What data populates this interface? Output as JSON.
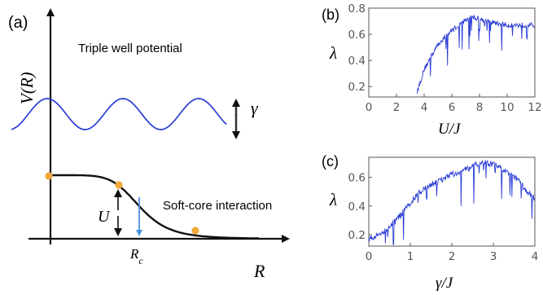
{
  "figure": {
    "panel_a": {
      "label": "(a)",
      "y_axis_label": "V(R)",
      "x_axis_label": "R",
      "title_triple": "Triple well potential",
      "gamma_label": "γ",
      "soft_core_label": "Soft-core interaction",
      "U_label": "U",
      "Rc_label": "Rc"
    },
    "colors": {
      "wave": "#2a3cd6",
      "marker": "#f0a83a",
      "arrow_blue": "#4a8ee0",
      "line": "#111111"
    }
  },
  "chart_data": [
    {
      "type": "line",
      "panel": "(b)",
      "xlabel": "U/J",
      "ylabel": "λ",
      "xlim": [
        0,
        12
      ],
      "ylim": [
        0.12,
        0.8
      ],
      "xticks": [
        0,
        2,
        4,
        6,
        8,
        10,
        12
      ],
      "yticks": [
        0.2,
        0.4,
        0.6,
        0.8
      ],
      "series": [
        {
          "color": "#2a3cd6",
          "x": [
            3.5,
            4.0,
            4.5,
            5.0,
            5.5,
            6.0,
            6.5,
            7.0,
            7.5,
            8.0,
            8.5,
            9.0,
            9.5,
            10.0,
            10.5,
            11.0,
            11.5,
            12.0
          ],
          "y": [
            0.16,
            0.33,
            0.43,
            0.52,
            0.58,
            0.63,
            0.67,
            0.71,
            0.73,
            0.72,
            0.7,
            0.69,
            0.68,
            0.67,
            0.67,
            0.67,
            0.67,
            0.67
          ]
        }
      ]
    },
    {
      "type": "line",
      "panel": "(c)",
      "xlabel": "γ/J",
      "ylabel": "λ",
      "xlim": [
        0,
        4
      ],
      "ylim": [
        0.12,
        0.74
      ],
      "xticks": [
        0,
        1,
        2,
        3,
        4
      ],
      "yticks": [
        0.2,
        0.4,
        0.6
      ],
      "series": [
        {
          "color": "#2a3cd6",
          "x": [
            0.0,
            0.2,
            0.4,
            0.6,
            0.8,
            1.0,
            1.2,
            1.4,
            1.6,
            1.8,
            2.0,
            2.2,
            2.4,
            2.6,
            2.8,
            3.0,
            3.2,
            3.4,
            3.6,
            3.8,
            4.0
          ],
          "y": [
            0.17,
            0.19,
            0.23,
            0.29,
            0.35,
            0.42,
            0.49,
            0.53,
            0.56,
            0.59,
            0.62,
            0.64,
            0.66,
            0.69,
            0.7,
            0.69,
            0.66,
            0.63,
            0.58,
            0.5,
            0.45
          ]
        }
      ]
    }
  ]
}
